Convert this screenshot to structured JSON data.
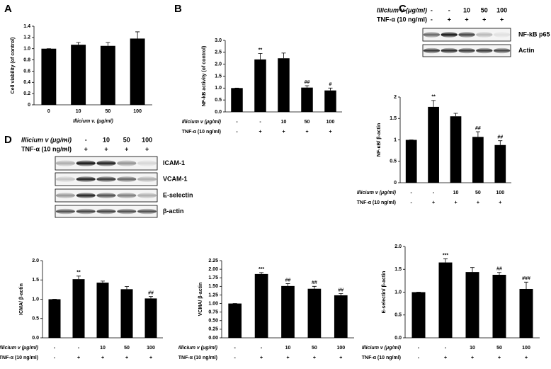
{
  "panels": [
    "A",
    "B",
    "C",
    "D"
  ],
  "blots": [
    {
      "rows": [
        {
          "label": "Illicium v (μg/ml)",
          "values": [
            "-",
            "-",
            "10",
            "50",
            "100"
          ]
        },
        {
          "label": "TNF-α (10 ng/ml)",
          "values": [
            "-",
            "+",
            "+",
            "+",
            "+"
          ]
        }
      ],
      "bands": [
        "NF-kB p65",
        "Actin"
      ]
    },
    {
      "rows": [
        {
          "label": "Illicium v (μg/ml)",
          "values": [
            "-",
            "-",
            "10",
            "50",
            "100"
          ]
        },
        {
          "label": "TNF-α (10 ng/ml)",
          "values": [
            "-",
            "+",
            "+",
            "+",
            "+"
          ]
        }
      ],
      "bands": [
        "ICAM-1",
        "VCAM-1",
        "E-selectin",
        "β-actin"
      ]
    }
  ],
  "chart_data": [
    {
      "type": "bar",
      "ylabel": "Cell viability (of control)",
      "xlabel": "Illicium v. (μg/ml)",
      "categories": [
        "0",
        "10",
        "50",
        "100"
      ],
      "values": [
        1.0,
        1.07,
        1.05,
        1.18
      ],
      "errors": [
        0,
        0.04,
        0.06,
        0.12
      ],
      "color": "#000000",
      "ylim": [
        0,
        1.4
      ],
      "yticks": [
        0,
        0.2,
        0.4,
        0.6,
        0.8,
        {
          "value": 1,
          "label": "1.0"
        },
        1.2,
        1.4
      ]
    },
    {
      "type": "bar",
      "ylabel": "NF-kB activity (of control)",
      "rows": [
        {
          "label": "Illicium v (μg/ml)",
          "values": [
            "-",
            "-",
            "10",
            "50",
            "100"
          ]
        },
        {
          "label": "TNF-α (10 ng/ml)",
          "values": [
            "-",
            "+",
            "+",
            "+",
            "+"
          ]
        }
      ],
      "values": [
        1.0,
        2.2,
        2.25,
        1.02,
        0.9
      ],
      "errors": [
        0,
        0.25,
        0.22,
        0.08,
        0.1
      ],
      "annotations": [
        null,
        "**",
        null,
        "##",
        "#"
      ],
      "color": "#000000",
      "ylim": [
        0,
        3
      ],
      "yticks": [
        {
          "value": 0,
          "label": "0.0"
        },
        0.5,
        {
          "value": 1,
          "label": "1.0"
        },
        1.5,
        {
          "value": 2,
          "label": "2.0"
        },
        2.5,
        {
          "value": 3,
          "label": "3.0"
        }
      ]
    },
    {
      "type": "bar",
      "ylabel": "NF-κB/ β-actin",
      "rows": [
        {
          "label": "Illicium v (μg/ml)",
          "values": [
            "-",
            "-",
            "10",
            "50",
            "100"
          ]
        },
        {
          "label": "TNF-α (10 ng/ml)",
          "values": [
            "-",
            "+",
            "+",
            "+",
            "+"
          ]
        }
      ],
      "values": [
        1.0,
        1.77,
        1.55,
        1.07,
        0.88
      ],
      "errors": [
        0,
        0.15,
        0.07,
        0.12,
        0.1
      ],
      "annotations": [
        null,
        "**",
        null,
        "##",
        "##"
      ],
      "color": "#000000",
      "ylim": [
        0,
        2
      ],
      "yticks": [
        0,
        0.5,
        1,
        1.5,
        2
      ]
    },
    {
      "type": "bar",
      "ylabel": "ICMA/ β-actin",
      "rows": [
        {
          "label": "Illicium v (μg/ml)",
          "values": [
            "-",
            "-",
            "10",
            "50",
            "100"
          ]
        },
        {
          "label": "TNF-α (10 ng/ml)",
          "values": [
            "-",
            "+",
            "+",
            "+",
            "+"
          ]
        }
      ],
      "values": [
        1.0,
        1.52,
        1.43,
        1.26,
        1.02
      ],
      "errors": [
        0,
        0.08,
        0.04,
        0.07,
        0.05
      ],
      "annotations": [
        null,
        "**",
        null,
        null,
        "##"
      ],
      "color": "#000000",
      "ylim": [
        0,
        2
      ],
      "yticks": [
        {
          "value": 0,
          "label": "0.0"
        },
        0.5,
        {
          "value": 1,
          "label": "1.0"
        },
        1.5,
        {
          "value": 2,
          "label": "2.0"
        }
      ]
    },
    {
      "type": "bar",
      "ylabel": "VCMA/ β-actin",
      "rows": [
        {
          "label": "Illicium v (μg/ml)",
          "values": [
            "-",
            "-",
            "10",
            "50",
            "100"
          ]
        },
        {
          "label": "TNF-α (10 ng/ml)",
          "values": [
            "-",
            "+",
            "+",
            "+",
            "+"
          ]
        }
      ],
      "values": [
        1.0,
        1.86,
        1.51,
        1.43,
        1.24
      ],
      "errors": [
        0,
        0.04,
        0.07,
        0.07,
        0.05
      ],
      "annotations": [
        null,
        "***",
        "##",
        "##",
        "##"
      ],
      "color": "#000000",
      "ylim": [
        0,
        2.25
      ],
      "yticks": [
        {
          "value": 0,
          "label": "0.00"
        },
        0.25,
        {
          "value": 0.5,
          "label": "0.50"
        },
        0.75,
        {
          "value": 1,
          "label": "1.00"
        },
        1.25,
        {
          "value": 1.5,
          "label": "1.50"
        },
        1.75,
        {
          "value": 2,
          "label": "2.00"
        },
        2.25
      ]
    },
    {
      "type": "bar",
      "ylabel": "E-selectin/ β-actin",
      "rows": [
        {
          "label": "Illicium v (μg/ml)",
          "values": [
            "-",
            "-",
            "10",
            "50",
            "100"
          ]
        },
        {
          "label": "TNF-α (10 ng/ml)",
          "values": [
            "-",
            "+",
            "+",
            "+",
            "+"
          ]
        }
      ],
      "values": [
        1.0,
        1.65,
        1.44,
        1.38,
        1.07
      ],
      "errors": [
        0,
        0.08,
        0.1,
        0.05,
        0.15
      ],
      "annotations": [
        null,
        "***",
        null,
        "##",
        "###"
      ],
      "color": "#000000",
      "ylim": [
        0,
        2
      ],
      "yticks": [
        {
          "value": 0,
          "label": "0.0"
        },
        0.5,
        {
          "value": 1,
          "label": "1.0"
        },
        1.5,
        {
          "value": 2,
          "label": "2.0"
        }
      ]
    }
  ]
}
